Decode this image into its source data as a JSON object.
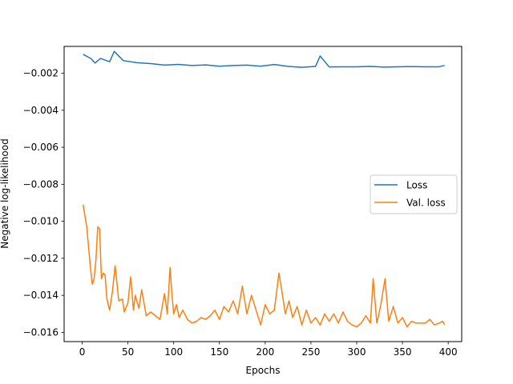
{
  "chart_data": {
    "type": "line",
    "xlabel": "Epochs",
    "ylabel": "Negative log-likelihood",
    "xlim": [
      -19.75,
      414.75
    ],
    "ylim": [
      -0.0165,
      -0.00055
    ],
    "xticks": [
      0,
      50,
      100,
      150,
      200,
      250,
      300,
      350,
      400
    ],
    "xtick_labels": [
      "0",
      "50",
      "100",
      "150",
      "200",
      "250",
      "300",
      "350",
      "400"
    ],
    "yticks": [
      -0.016,
      -0.014,
      -0.012,
      -0.01,
      -0.008,
      -0.006,
      -0.004,
      -0.002
    ],
    "ytick_labels": [
      "−0.016",
      "−0.014",
      "−0.012",
      "−0.010",
      "−0.008",
      "−0.006",
      "−0.004",
      "−0.002"
    ],
    "grid": false,
    "legend_position": "center-right",
    "series": [
      {
        "name": "Loss",
        "color": "#1f77b4",
        "x": [
          1,
          10,
          14,
          20,
          30,
          35,
          45,
          60,
          75,
          90,
          105,
          120,
          135,
          150,
          165,
          180,
          195,
          210,
          225,
          240,
          255,
          260,
          270,
          285,
          300,
          315,
          330,
          345,
          360,
          375,
          390,
          396
        ],
        "y": [
          -0.00098,
          -0.00122,
          -0.00145,
          -0.0012,
          -0.00138,
          -0.00082,
          -0.00132,
          -0.00143,
          -0.00148,
          -0.00156,
          -0.00152,
          -0.00158,
          -0.00155,
          -0.00162,
          -0.00158,
          -0.00156,
          -0.00162,
          -0.00153,
          -0.00163,
          -0.00168,
          -0.00163,
          -0.00107,
          -0.00166,
          -0.00165,
          -0.00165,
          -0.00163,
          -0.00167,
          -0.00165,
          -0.00164,
          -0.00165,
          -0.00165,
          -0.00158
        ]
      },
      {
        "name": "Val. loss",
        "color": "#ff7f0e",
        "x": [
          1,
          5,
          9,
          11,
          13,
          15,
          17,
          19,
          21,
          23,
          25,
          27,
          30,
          33,
          36,
          40,
          44,
          46,
          50,
          53,
          56,
          58,
          62,
          65,
          70,
          75,
          80,
          85,
          90,
          93,
          96,
          98,
          100,
          103,
          106,
          110,
          115,
          120,
          125,
          130,
          135,
          140,
          145,
          150,
          155,
          160,
          165,
          170,
          175,
          180,
          185,
          190,
          195,
          200,
          205,
          210,
          215,
          218,
          222,
          226,
          230,
          235,
          240,
          245,
          250,
          255,
          260,
          265,
          270,
          275,
          280,
          285,
          290,
          295,
          300,
          305,
          310,
          315,
          318,
          322,
          326,
          331,
          335,
          340,
          345,
          350,
          355,
          360,
          365,
          370,
          375,
          380,
          385,
          390,
          394,
          396
        ],
        "y": [
          -0.0091,
          -0.0103,
          -0.0125,
          -0.0134,
          -0.0131,
          -0.0121,
          -0.0103,
          -0.0104,
          -0.0131,
          -0.0128,
          -0.0129,
          -0.0142,
          -0.0148,
          -0.0138,
          -0.0124,
          -0.0143,
          -0.0142,
          -0.0149,
          -0.0144,
          -0.013,
          -0.0148,
          -0.014,
          -0.0147,
          -0.0137,
          -0.0151,
          -0.0149,
          -0.0151,
          -0.0153,
          -0.0139,
          -0.015,
          -0.0125,
          -0.0139,
          -0.015,
          -0.0145,
          -0.0152,
          -0.0148,
          -0.0153,
          -0.0155,
          -0.0154,
          -0.0152,
          -0.0153,
          -0.0151,
          -0.0148,
          -0.0153,
          -0.0146,
          -0.0149,
          -0.0143,
          -0.015,
          -0.0135,
          -0.015,
          -0.014,
          -0.0148,
          -0.0156,
          -0.0145,
          -0.015,
          -0.0148,
          -0.0128,
          -0.0137,
          -0.015,
          -0.0143,
          -0.0152,
          -0.0146,
          -0.0156,
          -0.0148,
          -0.0155,
          -0.0152,
          -0.0156,
          -0.015,
          -0.0154,
          -0.015,
          -0.0155,
          -0.0149,
          -0.0154,
          -0.0156,
          -0.0157,
          -0.0155,
          -0.0151,
          -0.0155,
          -0.0131,
          -0.0155,
          -0.0146,
          -0.0131,
          -0.0154,
          -0.0146,
          -0.0155,
          -0.0152,
          -0.0157,
          -0.0154,
          -0.0155,
          -0.0155,
          -0.0155,
          -0.0153,
          -0.0156,
          -0.0155,
          -0.0154,
          -0.0156
        ]
      }
    ]
  }
}
